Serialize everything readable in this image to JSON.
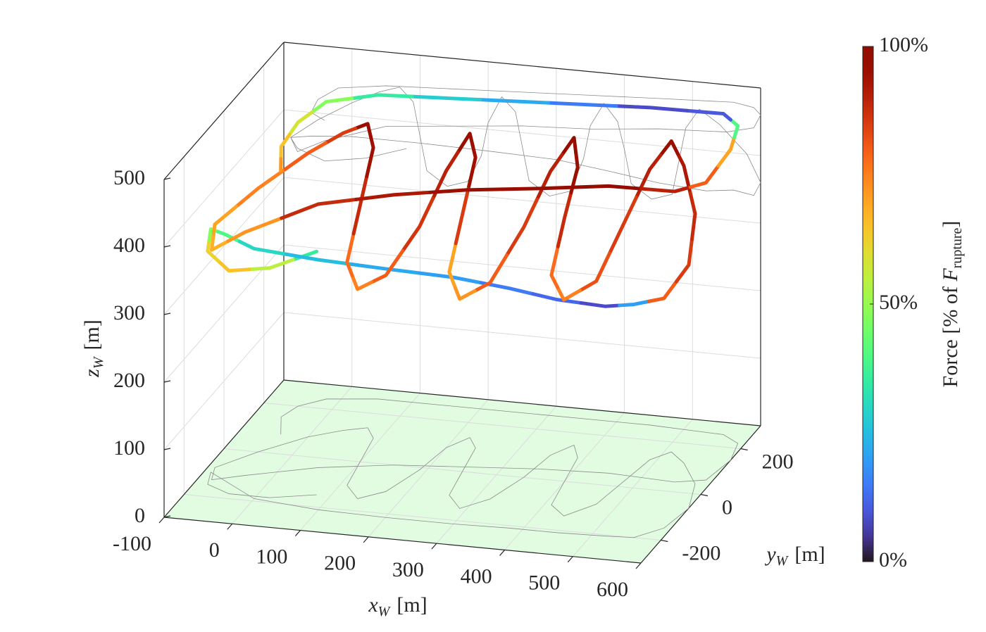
{
  "chart_data": {
    "type": "line3d",
    "xlabel": {
      "var": "x",
      "sub": "W",
      "unit": "[m]"
    },
    "ylabel": {
      "var": "y",
      "sub": "W",
      "unit": "[m]"
    },
    "zlabel": {
      "var": "z",
      "sub": "W",
      "unit": "[m]"
    },
    "xlim": [
      -100,
      600
    ],
    "ylim": [
      -300,
      300
    ],
    "zlim": [
      0,
      500
    ],
    "xticks": [
      -100,
      0,
      100,
      200,
      300,
      400,
      500,
      600
    ],
    "yticks": [
      -200,
      0,
      200
    ],
    "zticks": [
      0,
      100,
      200,
      300,
      400,
      500
    ],
    "grid": true,
    "floor_color": "#e2fce2",
    "shadow_color": "#8a8a8a",
    "series": [
      {
        "x": [
          80,
          20,
          -40,
          -80,
          -90,
          -60,
          0,
          100,
          200,
          300,
          380,
          450,
          520,
          560,
          590,
          600,
          580,
          540,
          510,
          490,
          480,
          470,
          440,
          410,
          400,
          390,
          370,
          350,
          340,
          320,
          290,
          260,
          250,
          240,
          220,
          200,
          190,
          170,
          140,
          110,
          100,
          90,
          70,
          40,
          0,
          -50,
          -90,
          -80,
          -40,
          50,
          150,
          250,
          350,
          450,
          550,
          590,
          600,
          590,
          560,
          450,
          350,
          250,
          150,
          50,
          -20,
          -50,
          -60,
          -40
        ],
        "y": [
          -150,
          -180,
          -180,
          -150,
          -100,
          -130,
          -190,
          -210,
          -215,
          -215,
          -210,
          -210,
          -205,
          -200,
          -150,
          -60,
          40,
          120,
          160,
          120,
          20,
          -80,
          -140,
          -100,
          0,
          100,
          150,
          100,
          0,
          -100,
          -150,
          -100,
          0,
          100,
          140,
          90,
          -10,
          -110,
          -150,
          -100,
          0,
          100,
          140,
          120,
          80,
          0,
          -80,
          -130,
          -100,
          -40,
          0,
          20,
          40,
          50,
          40,
          60,
          150,
          220,
          250,
          260,
          260,
          260,
          260,
          260,
          240,
          200,
          150,
          80
        ],
        "z": [
          360,
          340,
          330,
          345,
          360,
          365,
          370,
          370,
          368,
          365,
          355,
          345,
          340,
          345,
          340,
          360,
          400,
          440,
          460,
          430,
          380,
          330,
          320,
          340,
          390,
          430,
          455,
          420,
          370,
          320,
          310,
          330,
          380,
          430,
          450,
          410,
          360,
          320,
          310,
          330,
          380,
          430,
          450,
          440,
          420,
          390,
          360,
          340,
          360,
          390,
          400,
          410,
          415,
          425,
          430,
          440,
          460,
          470,
          475,
          470,
          465,
          460,
          455,
          450,
          440,
          420,
          400,
          390
        ],
        "force": [
          35,
          55,
          65,
          62,
          48,
          40,
          30,
          25,
          22,
          20,
          15,
          12,
          8,
          20,
          80,
          85,
          88,
          92,
          95,
          90,
          85,
          82,
          75,
          78,
          88,
          95,
          96,
          90,
          85,
          80,
          72,
          70,
          85,
          94,
          95,
          90,
          86,
          80,
          75,
          78,
          88,
          94,
          95,
          85,
          80,
          75,
          70,
          68,
          72,
          88,
          92,
          95,
          96,
          97,
          90,
          80,
          70,
          40,
          10,
          8,
          15,
          22,
          28,
          35,
          48,
          58,
          65,
          72
        ]
      }
    ],
    "colorbar": {
      "colormap": "turbo",
      "clim": [
        0,
        100
      ],
      "ticks": [
        {
          "value": 0,
          "label": "0%"
        },
        {
          "value": 50,
          "label": "50%"
        },
        {
          "value": 100,
          "label": "100%"
        }
      ],
      "label": {
        "text": "Force [% of ",
        "var": "F",
        "sub": "rupture",
        "close": "]"
      }
    }
  }
}
